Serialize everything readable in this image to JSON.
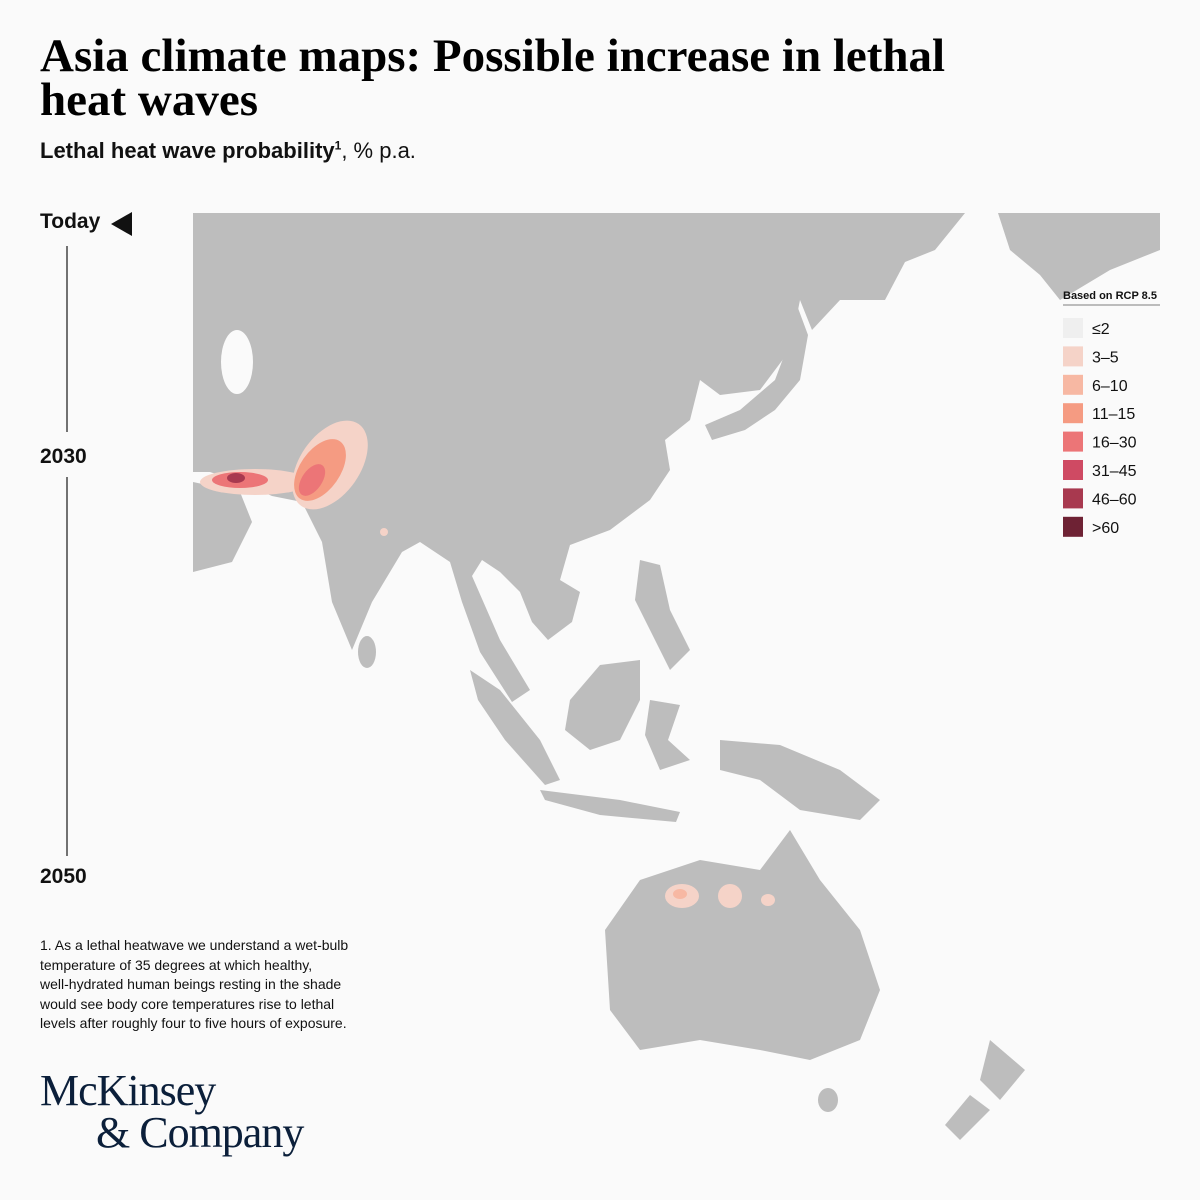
{
  "header": {
    "title_lines": [
      "Asia climate maps: Possible increase in lethal",
      "heat waves"
    ],
    "subtitle": {
      "bold": "Lethal heat wave probability",
      "superscript": "1",
      "rest": ", % p.a."
    }
  },
  "timeline": {
    "labels": [
      "Today",
      "2030",
      "2050"
    ]
  },
  "legend": {
    "title": "Based on RCP 8.5",
    "items": [
      {
        "label": "≤2",
        "color": "#efefef"
      },
      {
        "label": "3–5",
        "color": "#f5d3c8"
      },
      {
        "label": "6–10",
        "color": "#f7b8a3"
      },
      {
        "label": "11–15",
        "color": "#f59b82"
      },
      {
        "label": "16–30",
        "color": "#ec7577"
      },
      {
        "label": "31–45",
        "color": "#cf4a63"
      },
      {
        "label": "46–60",
        "color": "#a8394f"
      },
      {
        "label": ">60",
        "color": "#6e2234"
      }
    ]
  },
  "footnote": [
    "1. As a lethal heatwave we understand a wet-bulb",
    "temperature of 35 degrees at which healthy,",
    "well-hydrated human beings resting in the shade",
    "would see body core temperatures rise to lethal",
    "levels after roughly four to five hours of exposure."
  ],
  "logo": [
    "McKinsey",
    "& Company"
  ]
}
